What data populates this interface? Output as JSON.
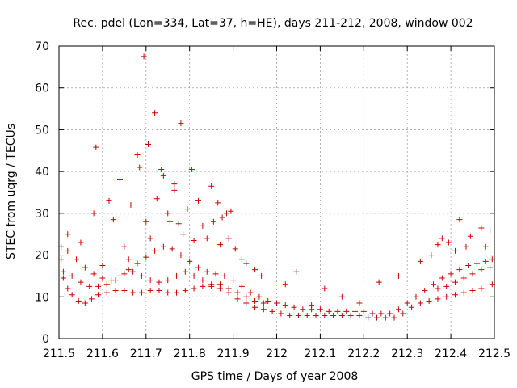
{
  "chart_data": {
    "type": "scatter",
    "title": "Rec. pdel (Lon=334, Lat=37, h=HE), days 211-212, 2008, window 002",
    "xlabel": "GPS time / Days of year 2008",
    "ylabel": "STEC from uqrg / TECUs",
    "xlim": [
      211.5,
      212.5
    ],
    "ylim": [
      0,
      70
    ],
    "xticks": [
      "211.5",
      "211.6",
      "211.7",
      "211.8",
      "211.9",
      "212",
      "212.1",
      "212.2",
      "212.3",
      "212.4",
      "212.5"
    ],
    "yticks": [
      "0",
      "10",
      "20",
      "30",
      "40",
      "50",
      "60",
      "70"
    ],
    "grid": true,
    "marker": "plus",
    "colors": {
      "points": "#cc0000",
      "grid": "#a0a0a0"
    },
    "series": [
      {
        "points": [
          [
            211.505,
            19.0
          ],
          [
            211.51,
            14.5
          ],
          [
            211.52,
            12.0
          ],
          [
            211.53,
            10.5
          ],
          [
            211.545,
            9.0
          ],
          [
            211.56,
            8.5
          ],
          [
            211.575,
            9.5
          ],
          [
            211.59,
            10.5
          ],
          [
            211.61,
            11.0
          ],
          [
            211.63,
            11.5
          ],
          [
            211.65,
            11.5
          ],
          [
            211.67,
            11.0
          ],
          [
            211.69,
            11.0
          ],
          [
            211.71,
            11.5
          ],
          [
            211.73,
            11.5
          ],
          [
            211.75,
            11.0
          ],
          [
            211.77,
            11.0
          ],
          [
            211.79,
            11.5
          ],
          [
            211.81,
            12.0
          ],
          [
            211.83,
            12.5
          ],
          [
            211.85,
            12.5
          ],
          [
            211.87,
            12.0
          ],
          [
            211.89,
            11.0
          ],
          [
            211.91,
            9.5
          ],
          [
            211.93,
            8.5
          ],
          [
            211.95,
            7.5
          ],
          [
            211.97,
            7.0
          ],
          [
            211.99,
            6.5
          ],
          [
            212.01,
            6.0
          ],
          [
            212.03,
            5.5
          ],
          [
            212.05,
            5.5
          ],
          [
            212.07,
            5.5
          ],
          [
            212.09,
            5.5
          ],
          [
            212.11,
            5.5
          ],
          [
            212.13,
            5.5
          ],
          [
            212.15,
            5.5
          ],
          [
            212.17,
            5.5
          ],
          [
            212.19,
            5.5
          ],
          [
            212.21,
            5.0
          ],
          [
            212.23,
            5.0
          ],
          [
            212.25,
            5.0
          ],
          [
            212.27,
            5.0
          ],
          [
            212.29,
            6.0
          ],
          [
            212.31,
            7.5
          ],
          [
            212.33,
            8.5
          ],
          [
            212.35,
            9.0
          ],
          [
            212.37,
            9.5
          ],
          [
            212.39,
            10.0
          ],
          [
            212.41,
            10.5
          ],
          [
            212.43,
            11.0
          ],
          [
            212.45,
            11.5
          ],
          [
            212.47,
            12.0
          ],
          [
            212.495,
            13.0
          ],
          [
            211.505,
            22.0
          ],
          [
            211.52,
            21.0
          ],
          [
            211.54,
            19.0
          ],
          [
            211.56,
            17.0
          ],
          [
            211.58,
            15.5
          ],
          [
            211.6,
            14.5
          ],
          [
            211.62,
            14.0
          ],
          [
            211.64,
            15.0
          ],
          [
            211.66,
            16.5
          ],
          [
            211.68,
            18.0
          ],
          [
            211.7,
            19.5
          ],
          [
            211.72,
            21.0
          ],
          [
            211.74,
            22.0
          ],
          [
            211.76,
            21.5
          ],
          [
            211.78,
            20.0
          ],
          [
            211.8,
            18.5
          ],
          [
            211.82,
            17.0
          ],
          [
            211.84,
            16.0
          ],
          [
            211.86,
            15.5
          ],
          [
            211.88,
            15.0
          ],
          [
            211.9,
            14.0
          ],
          [
            211.92,
            12.5
          ],
          [
            211.94,
            11.0
          ],
          [
            211.96,
            10.0
          ],
          [
            211.98,
            9.0
          ],
          [
            212.0,
            8.5
          ],
          [
            212.02,
            8.0
          ],
          [
            212.04,
            7.5
          ],
          [
            212.06,
            7.0
          ],
          [
            212.08,
            7.0
          ],
          [
            212.1,
            7.0
          ],
          [
            212.12,
            6.5
          ],
          [
            212.14,
            6.5
          ],
          [
            212.16,
            6.5
          ],
          [
            212.18,
            6.5
          ],
          [
            212.2,
            6.5
          ],
          [
            212.22,
            6.0
          ],
          [
            212.24,
            6.0
          ],
          [
            212.26,
            6.0
          ],
          [
            212.28,
            7.0
          ],
          [
            212.3,
            8.5
          ],
          [
            212.32,
            10.0
          ],
          [
            212.34,
            11.5
          ],
          [
            212.36,
            13.0
          ],
          [
            212.38,
            14.5
          ],
          [
            212.4,
            15.5
          ],
          [
            212.42,
            16.5
          ],
          [
            212.44,
            17.5
          ],
          [
            212.46,
            18.0
          ],
          [
            212.48,
            18.5
          ],
          [
            212.495,
            19.0
          ],
          [
            211.51,
            16.0
          ],
          [
            211.53,
            15.0
          ],
          [
            211.55,
            13.5
          ],
          [
            211.57,
            12.5
          ],
          [
            211.59,
            12.5
          ],
          [
            211.61,
            13.0
          ],
          [
            211.63,
            14.0
          ],
          [
            211.65,
            15.5
          ],
          [
            211.67,
            16.0
          ],
          [
            211.69,
            15.0
          ],
          [
            211.71,
            14.0
          ],
          [
            211.73,
            13.5
          ],
          [
            211.75,
            14.0
          ],
          [
            211.77,
            15.0
          ],
          [
            211.79,
            16.0
          ],
          [
            211.81,
            15.0
          ],
          [
            211.83,
            14.0
          ],
          [
            211.85,
            13.0
          ],
          [
            211.87,
            13.0
          ],
          [
            211.89,
            12.0
          ],
          [
            211.91,
            11.0
          ],
          [
            211.93,
            10.0
          ],
          [
            211.95,
            9.0
          ],
          [
            211.97,
            8.5
          ],
          [
            212.37,
            12.0
          ],
          [
            212.39,
            12.5
          ],
          [
            212.41,
            13.5
          ],
          [
            212.43,
            14.5
          ],
          [
            212.45,
            15.5
          ],
          [
            212.47,
            16.5
          ],
          [
            212.49,
            17.0
          ],
          [
            211.52,
            25.0
          ],
          [
            211.55,
            23.0
          ],
          [
            211.58,
            30.0
          ],
          [
            211.585,
            45.8
          ],
          [
            211.6,
            17.5
          ],
          [
            211.615,
            33.0
          ],
          [
            211.625,
            28.5
          ],
          [
            211.64,
            38.0
          ],
          [
            211.65,
            22.0
          ],
          [
            211.66,
            19.0
          ],
          [
            211.665,
            32.0
          ],
          [
            211.68,
            44.0
          ],
          [
            211.685,
            41.0
          ],
          [
            211.695,
            67.5
          ],
          [
            211.7,
            28.0
          ],
          [
            211.705,
            46.5
          ],
          [
            211.71,
            24.0
          ],
          [
            211.72,
            54.0
          ],
          [
            211.725,
            33.5
          ],
          [
            211.735,
            40.5
          ],
          [
            211.74,
            39.0
          ],
          [
            211.75,
            30.0
          ],
          [
            211.755,
            28.0
          ],
          [
            211.765,
            37.0
          ],
          [
            211.765,
            35.5
          ],
          [
            211.775,
            27.5
          ],
          [
            211.78,
            51.5
          ],
          [
            211.785,
            25.0
          ],
          [
            211.795,
            31.0
          ],
          [
            211.805,
            40.5
          ],
          [
            211.81,
            23.5
          ],
          [
            211.82,
            33.0
          ],
          [
            211.83,
            27.0
          ],
          [
            211.84,
            24.0
          ],
          [
            211.85,
            36.5
          ],
          [
            211.855,
            28.0
          ],
          [
            211.865,
            32.5
          ],
          [
            211.87,
            22.5
          ],
          [
            211.875,
            29.0
          ],
          [
            211.885,
            30.0
          ],
          [
            211.89,
            24.0
          ],
          [
            211.895,
            30.5
          ],
          [
            211.905,
            21.5
          ],
          [
            211.92,
            19.0
          ],
          [
            211.93,
            18.0
          ],
          [
            211.95,
            16.5
          ],
          [
            211.965,
            15.0
          ],
          [
            212.02,
            13.0
          ],
          [
            212.045,
            16.0
          ],
          [
            212.08,
            8.0
          ],
          [
            212.11,
            12.0
          ],
          [
            212.15,
            10.0
          ],
          [
            212.19,
            8.5
          ],
          [
            212.235,
            13.5
          ],
          [
            212.28,
            15.0
          ],
          [
            212.33,
            18.5
          ],
          [
            212.355,
            20.0
          ],
          [
            212.37,
            22.5
          ],
          [
            212.38,
            24.0
          ],
          [
            212.395,
            23.0
          ],
          [
            212.41,
            21.0
          ],
          [
            212.42,
            28.5
          ],
          [
            212.435,
            22.0
          ],
          [
            212.445,
            24.5
          ],
          [
            212.47,
            26.5
          ],
          [
            212.48,
            22.0
          ],
          [
            212.49,
            26.0
          ]
        ]
      }
    ]
  }
}
